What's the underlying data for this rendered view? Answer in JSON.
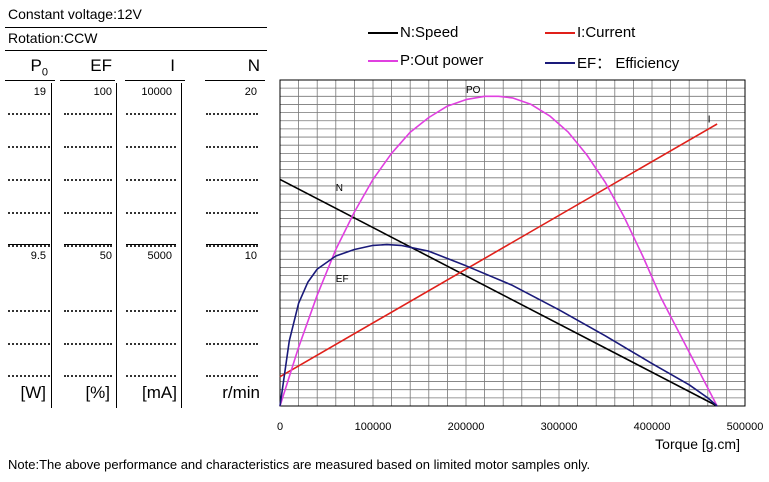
{
  "header": {
    "voltage": "Constant voltage:12V",
    "rotation": "Rotation:CCW"
  },
  "table": {
    "columns": [
      {
        "key": "P",
        "label": "P",
        "sub": "0",
        "unit": "[W]",
        "top": "19",
        "mid": "9.5"
      },
      {
        "key": "EF",
        "label": "EF",
        "sub": "",
        "unit": "[%]",
        "top": "100",
        "mid": "50"
      },
      {
        "key": "I",
        "label": "I",
        "sub": "",
        "unit": "[mA]",
        "top": "10000",
        "mid": "5000"
      },
      {
        "key": "N",
        "label": "N",
        "sub": "",
        "unit": "r/min",
        "top": "20",
        "mid": "10"
      }
    ]
  },
  "legend": {
    "speed": "N:Speed",
    "current": "I:Current",
    "power": "P:Out power",
    "efficiency": "EF： Efficiency"
  },
  "colors": {
    "speed": "#000000",
    "current": "#e0201a",
    "power": "#e040e0",
    "efficiency": "#1a1a7a"
  },
  "note": "Note:The above performance and characteristics are measured based on limited motor samples only.",
  "chart_data": {
    "type": "line",
    "xlabel": "Torque [g.cm]",
    "xlim": [
      0,
      500000
    ],
    "xticks": [
      "0",
      "100000",
      "200000",
      "300000",
      "400000",
      "500000"
    ],
    "ylim": [
      0,
      20
    ],
    "grid": true,
    "series": [
      {
        "name": "N",
        "label": "N",
        "color": "#000000",
        "x": [
          0,
          470000
        ],
        "y": [
          13.9,
          0
        ]
      },
      {
        "name": "I",
        "label": "I",
        "color": "#e0201a",
        "x": [
          0,
          470000
        ],
        "y": [
          1.8,
          17.3
        ]
      },
      {
        "name": "PO",
        "label": "PO",
        "color": "#e040e0",
        "x": [
          0,
          20000,
          40000,
          60000,
          80000,
          100000,
          120000,
          140000,
          160000,
          180000,
          200000,
          220000,
          235000,
          250000,
          270000,
          290000,
          310000,
          330000,
          350000,
          370000,
          390000,
          410000,
          430000,
          450000,
          470000
        ],
        "y": [
          0,
          3.6,
          6.8,
          9.6,
          11.9,
          13.9,
          15.5,
          16.8,
          17.7,
          18.4,
          18.8,
          19.0,
          19.0,
          18.9,
          18.5,
          17.8,
          16.8,
          15.4,
          13.7,
          11.6,
          9.2,
          6.6,
          4.4,
          2.2,
          0
        ]
      },
      {
        "name": "EF",
        "label": "EF",
        "color": "#1a1a7a",
        "x": [
          0,
          10000,
          20000,
          30000,
          40000,
          60000,
          80000,
          100000,
          115000,
          130000,
          160000,
          200000,
          250000,
          300000,
          350000,
          400000,
          440000,
          460000,
          470000
        ],
        "y": [
          0,
          4.0,
          6.3,
          7.6,
          8.4,
          9.2,
          9.6,
          9.85,
          9.9,
          9.85,
          9.5,
          8.6,
          7.4,
          5.9,
          4.3,
          2.6,
          1.3,
          0.5,
          0
        ]
      }
    ]
  }
}
